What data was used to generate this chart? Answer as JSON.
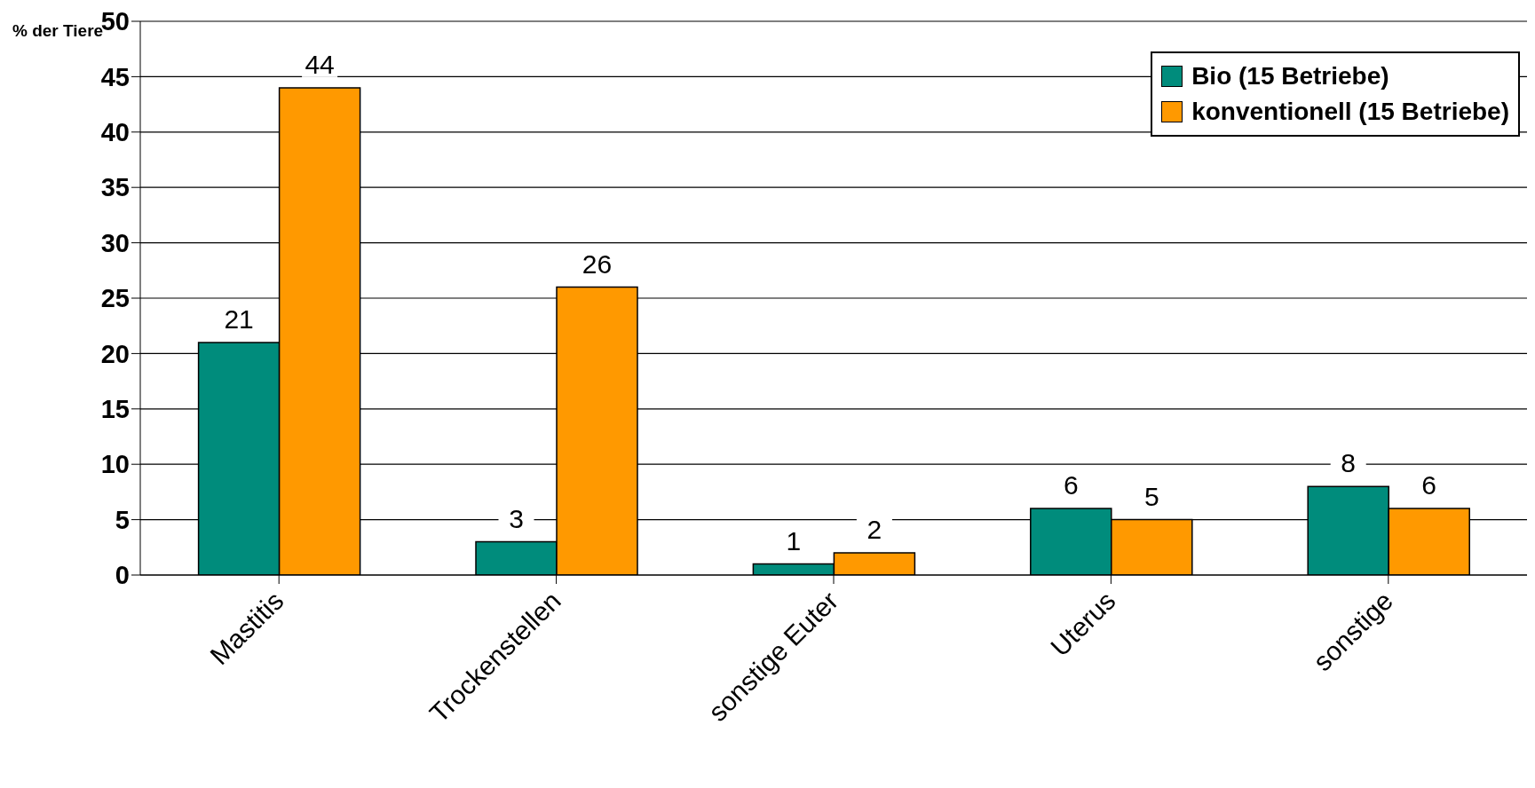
{
  "chart_data": {
    "type": "bar",
    "ylabel": "% der Tiere",
    "categories": [
      "Mastitis",
      "Trockenstellen",
      "sonstige Euter",
      "Uterus",
      "sonstige"
    ],
    "series": [
      {
        "name": "Bio (15 Betriebe)",
        "color": "#008c7c",
        "values": [
          21,
          3,
          1,
          6,
          8
        ]
      },
      {
        "name": "konventionell (15 Betriebe)",
        "color": "#ff9900",
        "values": [
          44,
          26,
          2,
          5,
          6
        ]
      }
    ],
    "ylim": [
      0,
      50
    ],
    "yticks": [
      0,
      5,
      10,
      15,
      20,
      25,
      30,
      35,
      40,
      45,
      50
    ],
    "grid": "y",
    "legend": "top right",
    "data_labels": true
  }
}
